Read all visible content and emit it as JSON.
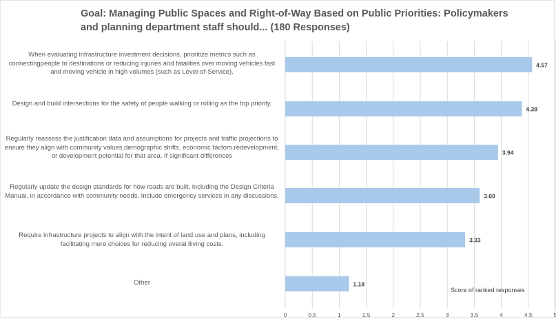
{
  "chart_data": {
    "type": "bar",
    "orientation": "horizontal",
    "title": "Goal: Managing Public Spaces and Right-of-Way Based on Public Priorities: Policymakers and planning department staff should... (180 Responses)",
    "categories": [
      "When evaluating infrastructure investment decisions, prioritize metrics such as connectingpeople to destinations or reducing injuries and fatalities over moving vehicles fast and moving vehicle in high volumes (such as Level-of-Service).",
      "Design and build intersections for the safety of people walking or rolling as the top priority.",
      "Regularly reassess the justification data and assumptions for projects and traffic projections to ensure they align with community values,demographic shifts, economic factors,redevelopment, or development potential for that area. If significant differences",
      "Regularly update the design standards for how roads are built, including the Design Criteria Manual, in accordance with community needs. Include emergency services in any discussions.",
      "Require infrastructure projects to align with the intent of land use and plans, including facilitating more choices for reducing overal lliving costs.",
      "Other"
    ],
    "values": [
      4.57,
      4.38,
      3.94,
      3.6,
      3.33,
      1.18
    ],
    "data_labels": [
      "4.57",
      "4.38",
      "3.94",
      "3.60",
      "3.33",
      "1.18"
    ],
    "xlabel": "Score of ranked responses",
    "xlim": [
      0,
      5
    ],
    "x_ticks": [
      "0",
      "0.5",
      "1",
      "1.5",
      "2",
      "2.5",
      "3",
      "3.5",
      "4",
      "4.5",
      "5"
    ],
    "grid": true,
    "bar_color": "#a9c9eb",
    "gridline_color": "#d9d9d9"
  }
}
